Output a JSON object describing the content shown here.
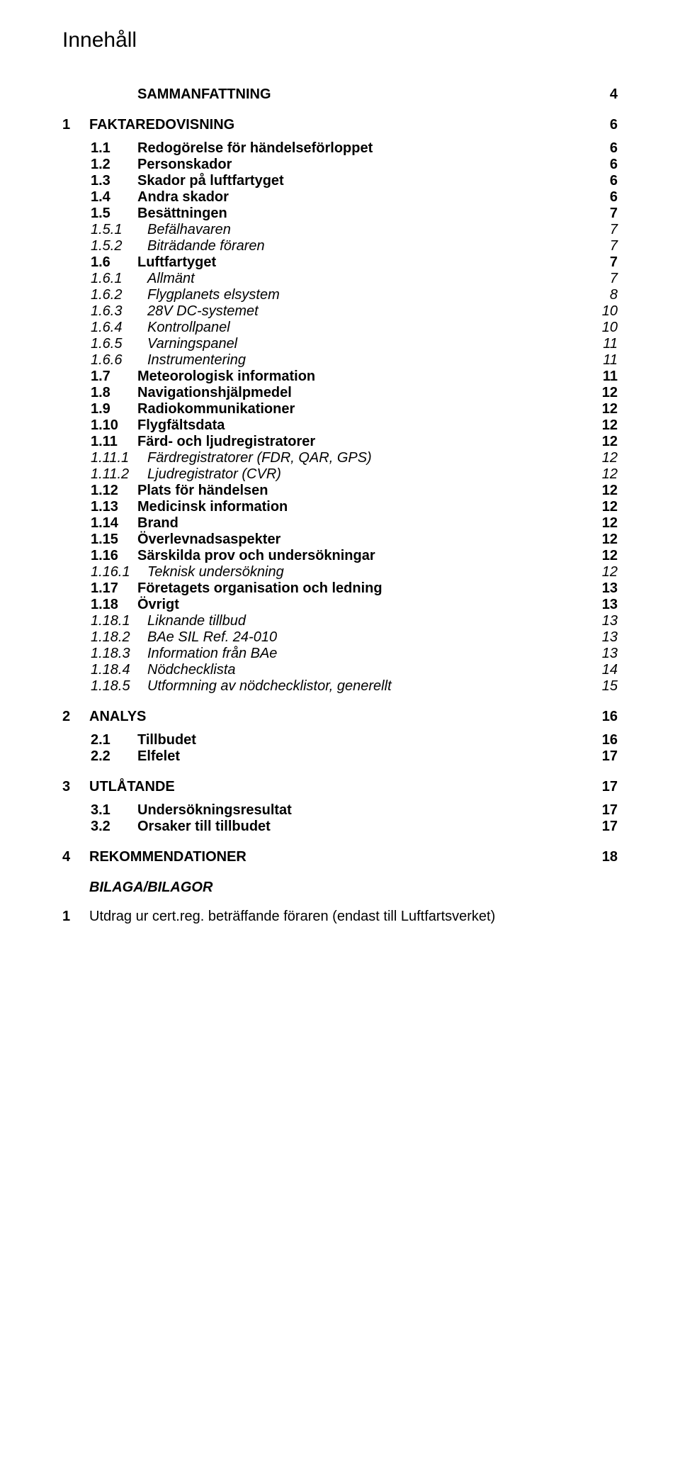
{
  "title": "Innehåll",
  "rows": [
    {
      "type": "gap",
      "size": "m"
    },
    {
      "indent": 1,
      "bold": true,
      "num": "",
      "label": "SAMMANFATTNING",
      "page": "4",
      "num_class": "num"
    },
    {
      "type": "gap",
      "size": "m"
    },
    {
      "indent": 0,
      "bold": true,
      "num": "1",
      "label": "FAKTAREDOVISNING",
      "page": "6",
      "num_class": "num-1"
    },
    {
      "type": "gap",
      "size": "s"
    },
    {
      "indent": 1,
      "bold": true,
      "num": "1.1",
      "label": "Redogörelse för händelseförloppet",
      "page": "6",
      "num_class": "num"
    },
    {
      "indent": 1,
      "bold": true,
      "num": "1.2",
      "label": "Personskador",
      "page": "6",
      "num_class": "num"
    },
    {
      "indent": 1,
      "bold": true,
      "num": "1.3",
      "label": "Skador på luftfartyget",
      "page": "6",
      "num_class": "num"
    },
    {
      "indent": 1,
      "bold": true,
      "num": "1.4",
      "label": "Andra skador",
      "page": "6",
      "num_class": "num"
    },
    {
      "indent": 1,
      "bold": true,
      "num": "1.5",
      "label": "Besättningen",
      "page": "7",
      "num_class": "num"
    },
    {
      "indent": 1,
      "italic": true,
      "num": "1.5.1",
      "label": "Befälhavaren",
      "page": "7",
      "num_class": "num-2"
    },
    {
      "indent": 1,
      "italic": true,
      "num": "1.5.2",
      "label": "Biträdande föraren",
      "page": "7",
      "num_class": "num-2"
    },
    {
      "indent": 1,
      "bold": true,
      "num": "1.6",
      "label": "Luftfartyget",
      "page": "7",
      "num_class": "num"
    },
    {
      "indent": 1,
      "italic": true,
      "num": "1.6.1",
      "label": "Allmänt",
      "page": "7",
      "num_class": "num-2"
    },
    {
      "indent": 1,
      "italic": true,
      "num": "1.6.2",
      "label": "Flygplanets elsystem",
      "page": "8",
      "num_class": "num-2"
    },
    {
      "indent": 1,
      "italic": true,
      "num": "1.6.3",
      "label": "28V DC-systemet",
      "page": "10",
      "num_class": "num-2"
    },
    {
      "indent": 1,
      "italic": true,
      "num": "1.6.4",
      "label": "Kontrollpanel",
      "page": "10",
      "num_class": "num-2"
    },
    {
      "indent": 1,
      "italic": true,
      "num": "1.6.5",
      "label": "Varningspanel",
      "page": "11",
      "num_class": "num-2"
    },
    {
      "indent": 1,
      "italic": true,
      "num": "1.6.6",
      "label": "Instrumentering",
      "page": "11",
      "num_class": "num-2"
    },
    {
      "indent": 1,
      "bold": true,
      "num": "1.7",
      "label": "Meteorologisk information",
      "page": "11",
      "num_class": "num"
    },
    {
      "indent": 1,
      "bold": true,
      "num": "1.8",
      "label": "Navigationshjälpmedel",
      "page": "12",
      "num_class": "num"
    },
    {
      "indent": 1,
      "bold": true,
      "num": "1.9",
      "label": "Radiokommunikationer",
      "page": "12",
      "num_class": "num"
    },
    {
      "indent": 1,
      "bold": true,
      "num": "1.10",
      "label": "Flygfältsdata",
      "page": "12",
      "num_class": "num"
    },
    {
      "indent": 1,
      "bold": true,
      "num": "1.11",
      "label": "Färd- och ljudregistratorer",
      "page": "12",
      "num_class": "num"
    },
    {
      "indent": 1,
      "italic": true,
      "num": "1.11.1",
      "label": "Färdregistratorer (FDR, QAR, GPS)",
      "page": "12",
      "num_class": "num-2"
    },
    {
      "indent": 1,
      "italic": true,
      "num": "1.11.2",
      "label": "Ljudregistrator (CVR)",
      "page": "12",
      "num_class": "num-2"
    },
    {
      "indent": 1,
      "bold": true,
      "num": "1.12",
      "label": "Plats för händelsen",
      "page": "12",
      "num_class": "num"
    },
    {
      "indent": 1,
      "bold": true,
      "num": "1.13",
      "label": "Medicinsk information",
      "page": "12",
      "num_class": "num"
    },
    {
      "indent": 1,
      "bold": true,
      "num": "1.14",
      "label": "Brand",
      "page": "12",
      "num_class": "num"
    },
    {
      "indent": 1,
      "bold": true,
      "num": "1.15",
      "label": "Överlevnadsaspekter",
      "page": "12",
      "num_class": "num"
    },
    {
      "indent": 1,
      "bold": true,
      "num": "1.16",
      "label": "Särskilda prov och undersökningar",
      "page": "12",
      "num_class": "num"
    },
    {
      "indent": 1,
      "italic": true,
      "num": "1.16.1",
      "label": "Teknisk undersökning",
      "page": "12",
      "num_class": "num-2"
    },
    {
      "indent": 1,
      "bold": true,
      "num": "1.17",
      "label": "Företagets organisation och ledning",
      "page": "13",
      "num_class": "num"
    },
    {
      "indent": 1,
      "bold": true,
      "num": "1.18",
      "label": "Övrigt",
      "page": "13",
      "num_class": "num"
    },
    {
      "indent": 1,
      "italic": true,
      "num": "1.18.1",
      "label": "Liknande tillbud",
      "page": "13",
      "num_class": "num-2"
    },
    {
      "indent": 1,
      "italic": true,
      "num": "1.18.2",
      "label": "BAe SIL Ref. 24-010",
      "page": "13",
      "num_class": "num-2"
    },
    {
      "indent": 1,
      "italic": true,
      "num": "1.18.3",
      "label": "Information från BAe",
      "page": "13",
      "num_class": "num-2"
    },
    {
      "indent": 1,
      "italic": true,
      "num": "1.18.4",
      "label": "Nödchecklista",
      "page": "14",
      "num_class": "num-2"
    },
    {
      "indent": 1,
      "italic": true,
      "num": "1.18.5",
      "label": "Utformning av nödchecklistor, generellt",
      "page": "15",
      "num_class": "num-2"
    },
    {
      "type": "gap",
      "size": "m"
    },
    {
      "indent": 0,
      "bold": true,
      "num": "2",
      "label": "ANALYS",
      "page": "16",
      "num_class": "num-1"
    },
    {
      "type": "gap",
      "size": "s"
    },
    {
      "indent": 1,
      "bold": true,
      "num": "2.1",
      "label": "Tillbudet",
      "page": "16",
      "num_class": "num"
    },
    {
      "indent": 1,
      "bold": true,
      "num": "2.2",
      "label": "Elfelet",
      "page": "17",
      "num_class": "num"
    },
    {
      "type": "gap",
      "size": "m"
    },
    {
      "indent": 0,
      "bold": true,
      "num": "3",
      "label": "UTLÅTANDE",
      "page": "17",
      "num_class": "num-1"
    },
    {
      "type": "gap",
      "size": "s"
    },
    {
      "indent": 1,
      "bold": true,
      "num": "3.1",
      "label": "Undersökningsresultat",
      "page": "17",
      "num_class": "num"
    },
    {
      "indent": 1,
      "bold": true,
      "num": "3.2",
      "label": "Orsaker till tillbudet",
      "page": "17",
      "num_class": "num"
    },
    {
      "type": "gap",
      "size": "m"
    },
    {
      "indent": 0,
      "bold": true,
      "num": "4",
      "label": "REKOMMENDATIONER",
      "page": "18",
      "num_class": "num-1"
    },
    {
      "type": "gap",
      "size": "m"
    },
    {
      "indent": 0,
      "bold": true,
      "italic": true,
      "num": "",
      "label": "BILAGA/BILAGOR",
      "page": "",
      "num_class": "num-1"
    }
  ],
  "final": {
    "num": "1",
    "text": "Utdrag ur cert.reg. beträffande föraren (endast till Luftfartsverket)"
  }
}
